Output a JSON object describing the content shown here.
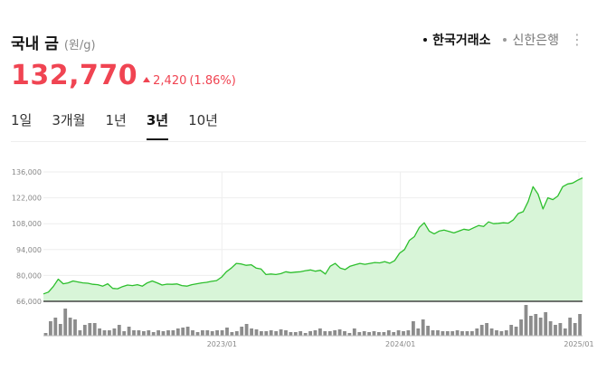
{
  "header": {
    "title": "국내 금",
    "unit": "(원/g)"
  },
  "sources": [
    {
      "label": "한국거래소",
      "active": true
    },
    {
      "label": "신한은행",
      "active": false
    }
  ],
  "more_icon": "more-vertical-icon",
  "price": {
    "value": "132,770",
    "change": "2,420",
    "change_pct": "(1.86%)",
    "direction": "up"
  },
  "tabs": [
    {
      "label": "1일",
      "active": false
    },
    {
      "label": "3개월",
      "active": false
    },
    {
      "label": "1년",
      "active": false
    },
    {
      "label": "3년",
      "active": true
    },
    {
      "label": "10년",
      "active": false
    }
  ],
  "colors": {
    "up": "#f04452",
    "line": "#2dbf2d",
    "fill": "#d8f5d8",
    "volume": "#8c8c8c"
  },
  "chart_data": {
    "type": "area",
    "y_ticks": [
      "136,000",
      "122,000",
      "108,000",
      "94,000",
      "80,000",
      "66,000"
    ],
    "ylim": [
      66000,
      136000
    ],
    "x_ticks": [
      {
        "label": "2023/01",
        "x": "2023-01"
      },
      {
        "label": "2024/01",
        "x": "2024-01"
      },
      {
        "label": "2025/01",
        "x": "2025-01"
      }
    ],
    "xlim": [
      "2022-01",
      "2025-01"
    ],
    "grid": true,
    "series": [
      {
        "values": [
          70000,
          71000,
          74000,
          78000,
          75500,
          76000,
          77000,
          76500,
          76000,
          75800,
          75200,
          75000,
          74200,
          75500,
          73000,
          72800,
          74000,
          74800,
          74500,
          75000,
          74200,
          76000,
          77000,
          76000,
          74800,
          75300,
          75200,
          75400,
          74500,
          74200,
          75000,
          75500,
          76000,
          76300,
          76800,
          77200,
          79000,
          82000,
          84000,
          86500,
          86200,
          85500,
          85800,
          84000,
          83500,
          80500,
          80800,
          80500,
          81000,
          82000,
          81500,
          81800,
          82000,
          82600,
          83000,
          82300,
          82800,
          80800,
          85000,
          86500,
          84000,
          83200,
          85000,
          85800,
          86500,
          86000,
          86500,
          87000,
          86800,
          87500,
          86600,
          88000,
          92000,
          94000,
          99000,
          101000,
          106000,
          108500,
          104000,
          102500,
          104000,
          104500,
          103800,
          103000,
          104000,
          105000,
          104500,
          105800,
          107000,
          106500,
          109000,
          108000,
          108200,
          108500,
          108300,
          110000,
          113500,
          114500,
          120000,
          128000,
          124000,
          116000,
          122000,
          121000,
          123000,
          128000,
          129500,
          130000,
          131500,
          132770
        ]
      }
    ],
    "volume": [
      3,
      16,
      20,
      13,
      30,
      20,
      18,
      6,
      12,
      14,
      14,
      8,
      6,
      6,
      8,
      12,
      5,
      10,
      6,
      6,
      5,
      6,
      4,
      6,
      5,
      6,
      6,
      8,
      9,
      10,
      6,
      4,
      6,
      6,
      5,
      6,
      6,
      9,
      4,
      5,
      10,
      13,
      8,
      7,
      5,
      5,
      6,
      5,
      7,
      6,
      4,
      4,
      5,
      3,
      5,
      6,
      8,
      5,
      5,
      6,
      7,
      5,
      3,
      8,
      4,
      5,
      4,
      5,
      4,
      4,
      6,
      4,
      6,
      5,
      6,
      16,
      8,
      18,
      11,
      6,
      6,
      5,
      5,
      5,
      6,
      5,
      5,
      5,
      8,
      12,
      14,
      8,
      6,
      5,
      6,
      12,
      10,
      18,
      34,
      22,
      24,
      20,
      26,
      16,
      12,
      14,
      8,
      20,
      14,
      24
    ]
  }
}
